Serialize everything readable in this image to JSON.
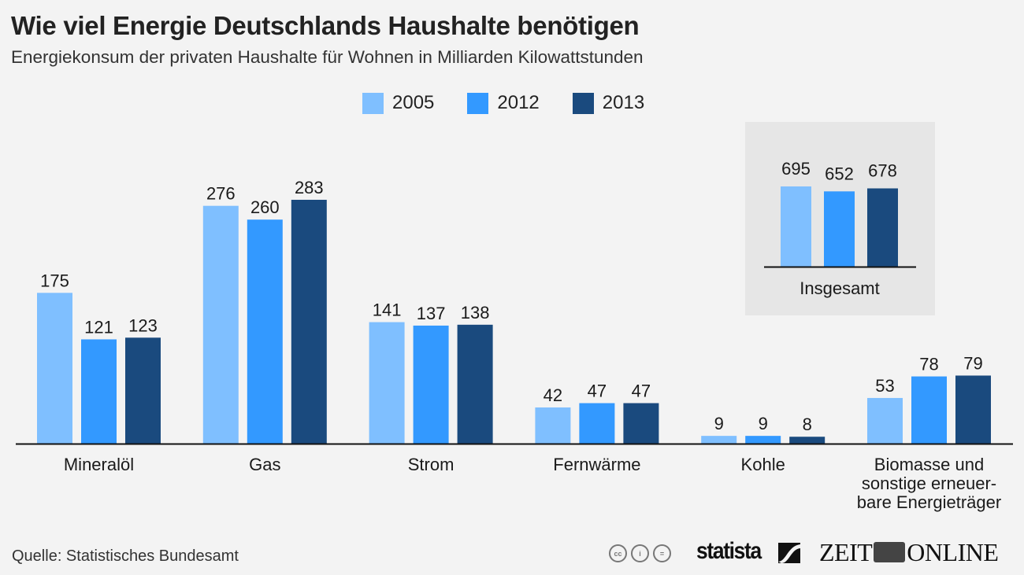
{
  "header": {
    "title": "Wie viel Energie Deutschlands Haushalte benötigen",
    "subtitle": "Energiekonsum der privaten Haushalte für Wohnen in Milliarden Kilowattstunden"
  },
  "legend": [
    {
      "label": "2005",
      "color": "#7fbfff"
    },
    {
      "label": "2012",
      "color": "#3399ff"
    },
    {
      "label": "2013",
      "color": "#1a4a7e"
    }
  ],
  "chart_data": [
    {
      "type": "bar",
      "title": "Wie viel Energie Deutschlands Haushalte benötigen",
      "subtitle": "Energiekonsum der privaten Haushalte für Wohnen in Milliarden Kilowattstunden",
      "xlabel": "",
      "ylabel": "",
      "categories": [
        [
          "Mineralöl"
        ],
        [
          "Gas"
        ],
        [
          "Strom"
        ],
        [
          "Fernwärme"
        ],
        [
          "Kohle"
        ],
        [
          "Biomasse und",
          "sonstige erneuer-",
          "bare Energieträger"
        ]
      ],
      "series": [
        {
          "name": "2005",
          "color": "#7fbfff",
          "values": [
            175,
            276,
            141,
            42,
            9,
            53
          ]
        },
        {
          "name": "2012",
          "color": "#3399ff",
          "values": [
            121,
            260,
            137,
            47,
            9,
            78
          ]
        },
        {
          "name": "2013",
          "color": "#1a4a7e",
          "values": [
            123,
            283,
            138,
            47,
            8,
            79
          ]
        }
      ],
      "ylim": [
        0,
        283
      ],
      "grid": false,
      "legend_position": "top-center",
      "data_labels": true
    },
    {
      "type": "bar",
      "title": "Insgesamt",
      "categories": [
        "Insgesamt"
      ],
      "series": [
        {
          "name": "2005",
          "color": "#7fbfff",
          "values": [
            695
          ]
        },
        {
          "name": "2012",
          "color": "#3399ff",
          "values": [
            652
          ]
        },
        {
          "name": "2013",
          "color": "#1a4a7e",
          "values": [
            678
          ]
        }
      ],
      "ylim": [
        0,
        695
      ],
      "grid": false,
      "data_labels": true
    }
  ],
  "footer": {
    "source": "Quelle: Statistisches Bundesamt",
    "license_icons": [
      "cc-icon",
      "by-icon",
      "nd-icon"
    ],
    "cc_labels": [
      "cc",
      "i",
      "="
    ],
    "statista": "statista",
    "zeit_left": "ZEIT",
    "zeit_right": "ONLINE"
  }
}
